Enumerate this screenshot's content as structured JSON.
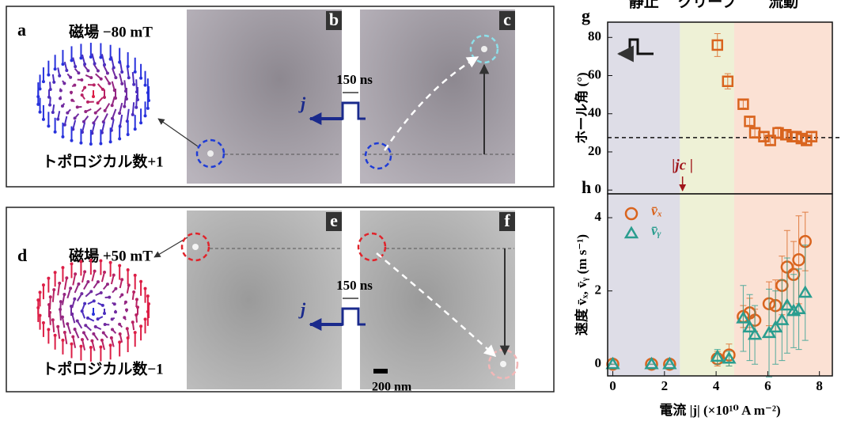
{
  "figure": {
    "panel_labels": [
      "a",
      "b",
      "c",
      "d",
      "e",
      "f"
    ],
    "field_top": "磁場 −80 mT",
    "topo_top": "トポロジカル数+1",
    "field_bottom": "磁場 +50 mT",
    "topo_bottom": "トポロジカル数−1",
    "pulse_width": "150 ns",
    "current": "j",
    "scale_bar": "200 nm",
    "regimes": [
      "静止",
      "クリープ",
      "流動"
    ],
    "regime_edges": [
      2.6,
      4.7
    ],
    "regime_colors": [
      "#dedde7",
      "#eef1d6",
      "#fbe1d4"
    ]
  },
  "chart_data": [
    {
      "type": "scatter",
      "panel": "g",
      "ylabel": "ホール角 (°)",
      "x": [
        4.05,
        4.45,
        5.05,
        5.3,
        5.5,
        5.85,
        6.1,
        6.4,
        6.7,
        6.95,
        7.1,
        7.3,
        7.5,
        7.7
      ],
      "series": [
        {
          "color": "#d9641e",
          "marker": "square",
          "values": [
            76,
            57,
            45,
            36,
            30,
            28,
            26,
            30,
            29,
            28,
            28,
            27,
            26,
            28
          ],
          "errors": [
            6,
            4,
            2,
            2,
            2,
            2,
            2,
            3,
            2,
            2,
            2,
            2,
            2,
            2
          ]
        }
      ],
      "xlim": [
        -0.2,
        8.5
      ],
      "ylim": [
        -2,
        88
      ],
      "yticks": [
        0,
        20,
        40,
        60,
        80
      ],
      "reference_line": 27.5,
      "annotation": "|jc |",
      "annotation_x": 2.7
    },
    {
      "type": "scatter",
      "panel": "h",
      "xlabel": "電流 |j| (×10¹⁰ A m⁻²)",
      "ylabel": "速度 v̄ₓ, v̄ᵧ (m s⁻¹)",
      "x": [
        0,
        1.5,
        2.2,
        4.05,
        4.5,
        5.05,
        5.3,
        5.5,
        6.05,
        6.3,
        6.55,
        6.75,
        7.0,
        7.2,
        7.45
      ],
      "series": [
        {
          "name": "v̄ₓ",
          "color": "#d9641e",
          "marker": "circle",
          "values": [
            0,
            0,
            0,
            0.15,
            0.25,
            1.3,
            1.4,
            1.2,
            1.65,
            1.6,
            2.15,
            2.65,
            2.45,
            2.85,
            3.35
          ],
          "errors": [
            0,
            0,
            0,
            0.2,
            0.3,
            0.3,
            0.4,
            0.3,
            0.6,
            0.7,
            0.8,
            1.0,
            0.9,
            1.2,
            0.8
          ]
        },
        {
          "name": "v̄ᵧ",
          "color": "#2a9d8f",
          "marker": "triangle",
          "values": [
            0,
            0,
            0,
            0.2,
            0.15,
            1.25,
            1.0,
            0.8,
            0.85,
            1.0,
            1.2,
            1.6,
            1.45,
            1.5,
            1.95
          ],
          "errors": [
            0,
            0,
            0,
            0.2,
            0.2,
            0.9,
            0.9,
            0.8,
            1.2,
            1.0,
            1.1,
            1.3,
            1.0,
            1.1,
            1.3
          ]
        }
      ],
      "xlim": [
        -0.2,
        8.5
      ],
      "ylim": [
        -0.32,
        4.65
      ],
      "xticks": [
        0,
        2,
        4,
        6,
        8
      ],
      "yticks": [
        0,
        2,
        4
      ]
    }
  ]
}
